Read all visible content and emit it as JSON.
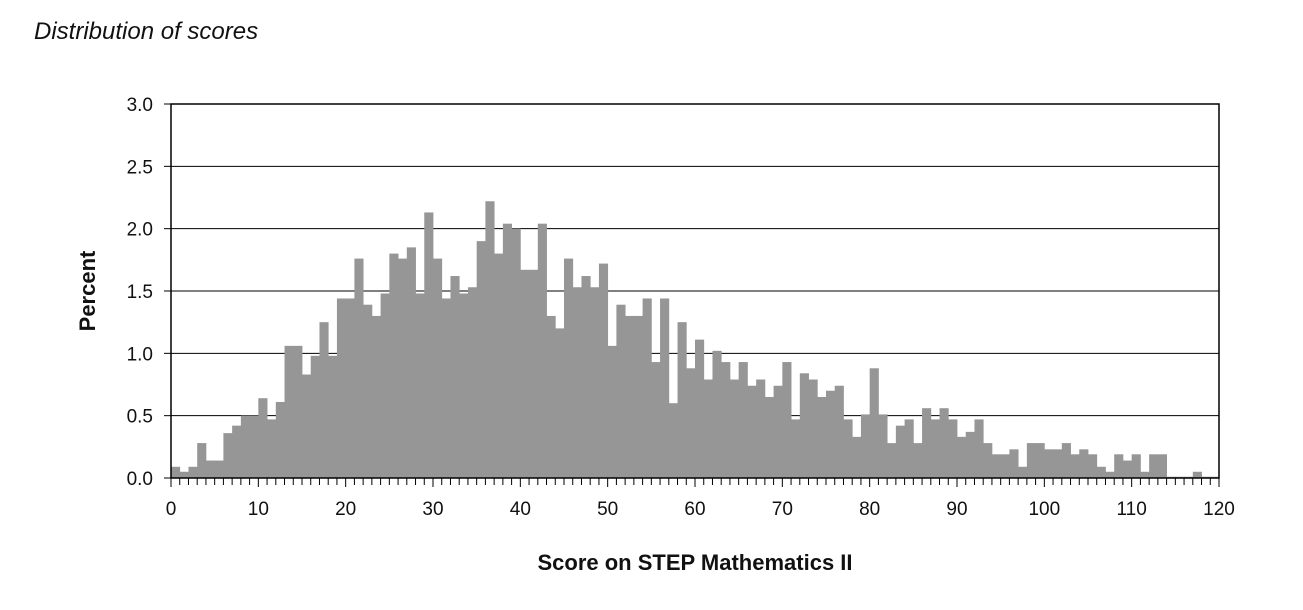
{
  "page": {
    "title": "Distribution of scores"
  },
  "chart_data": {
    "type": "bar",
    "title": "",
    "xlabel": "Score on STEP Mathematics II",
    "ylabel": "Percent",
    "xlim": [
      0,
      120
    ],
    "ylim": [
      0,
      3
    ],
    "x_ticks": [
      0,
      10,
      20,
      30,
      40,
      50,
      60,
      70,
      80,
      90,
      100,
      110,
      120
    ],
    "y_ticks": [
      "0.0",
      "0.5",
      "1.0",
      "1.5",
      "2.0",
      "2.5",
      "3.0"
    ],
    "grid": true,
    "legend": "none",
    "bar_color": "#969696",
    "x": [
      0,
      1,
      2,
      3,
      4,
      5,
      6,
      7,
      8,
      9,
      10,
      11,
      12,
      13,
      14,
      15,
      16,
      17,
      18,
      19,
      20,
      21,
      22,
      23,
      24,
      25,
      26,
      27,
      28,
      29,
      30,
      31,
      32,
      33,
      34,
      35,
      36,
      37,
      38,
      39,
      40,
      41,
      42,
      43,
      44,
      45,
      46,
      47,
      48,
      49,
      50,
      51,
      52,
      53,
      54,
      55,
      56,
      57,
      58,
      59,
      60,
      61,
      62,
      63,
      64,
      65,
      66,
      67,
      68,
      69,
      70,
      71,
      72,
      73,
      74,
      75,
      76,
      77,
      78,
      79,
      80,
      81,
      82,
      83,
      84,
      85,
      86,
      87,
      88,
      89,
      90,
      91,
      92,
      93,
      94,
      95,
      96,
      97,
      98,
      99,
      100,
      101,
      102,
      103,
      104,
      105,
      106,
      107,
      108,
      109,
      110,
      111,
      112,
      113,
      114,
      115,
      116,
      117,
      118,
      119
    ],
    "values": [
      0.09,
      0.05,
      0.09,
      0.28,
      0.14,
      0.14,
      0.36,
      0.42,
      0.5,
      0.5,
      0.64,
      0.47,
      0.61,
      1.06,
      1.06,
      0.83,
      0.98,
      1.25,
      0.98,
      1.44,
      1.44,
      1.76,
      1.39,
      1.3,
      1.48,
      1.8,
      1.76,
      1.85,
      1.48,
      2.13,
      1.76,
      1.44,
      1.62,
      1.48,
      1.53,
      1.9,
      2.22,
      1.8,
      2.04,
      2.0,
      1.67,
      1.67,
      2.04,
      1.3,
      1.2,
      1.76,
      1.53,
      1.62,
      1.53,
      1.72,
      1.06,
      1.39,
      1.3,
      1.3,
      1.44,
      0.93,
      1.44,
      0.6,
      1.25,
      0.88,
      1.11,
      0.79,
      1.02,
      0.93,
      0.79,
      0.93,
      0.74,
      0.79,
      0.65,
      0.74,
      0.93,
      0.47,
      0.84,
      0.79,
      0.65,
      0.7,
      0.74,
      0.47,
      0.33,
      0.51,
      0.88,
      0.51,
      0.28,
      0.42,
      0.47,
      0.28,
      0.56,
      0.47,
      0.56,
      0.47,
      0.33,
      0.37,
      0.47,
      0.28,
      0.19,
      0.19,
      0.23,
      0.09,
      0.28,
      0.28,
      0.23,
      0.23,
      0.28,
      0.19,
      0.23,
      0.19,
      0.09,
      0.05,
      0.19,
      0.14,
      0.19,
      0.05,
      0.19,
      0.19,
      0.01,
      0.01,
      0.01,
      0.05,
      0.01,
      0.01
    ]
  }
}
